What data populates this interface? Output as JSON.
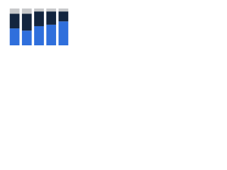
{
  "chart_data": {
    "type": "stacked_bar",
    "categories": [
      null,
      null,
      null,
      null,
      null
    ],
    "series": [
      {
        "color": "#2f6fdc",
        "values": [
          46,
          40,
          52,
          56,
          65
        ]
      },
      {
        "color": "#13253f",
        "values": [
          40,
          46,
          40,
          36,
          27
        ]
      },
      {
        "color": "#c8c9cb",
        "values": [
          14,
          14,
          8,
          8,
          8
        ]
      }
    ],
    "ylim": [
      0,
      100
    ]
  }
}
